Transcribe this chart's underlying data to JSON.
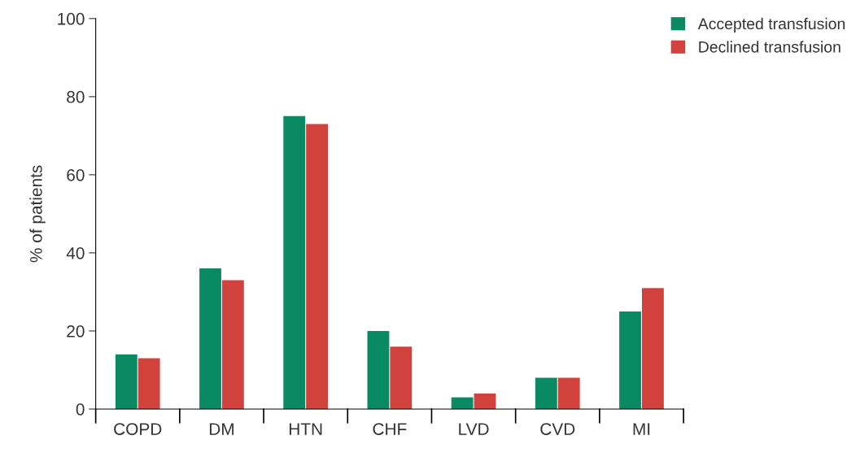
{
  "chart_data": {
    "type": "bar",
    "ylabel": "% of patients",
    "categories": [
      "COPD",
      "DM",
      "HTN",
      "CHF",
      "LVD",
      "CVD",
      "MI"
    ],
    "series": [
      {
        "name": "Accepted transfusion",
        "color": "#0a8a62",
        "values": [
          14,
          36,
          75,
          20,
          3,
          8,
          25
        ]
      },
      {
        "name": "Declined transfusion",
        "color": "#d2423c",
        "values": [
          13,
          33,
          73,
          16,
          4,
          8,
          31
        ]
      }
    ],
    "ylim": [
      0,
      100
    ],
    "yticks": [
      0,
      20,
      40,
      60,
      80,
      100
    ],
    "grid": false,
    "legend": "top right"
  }
}
